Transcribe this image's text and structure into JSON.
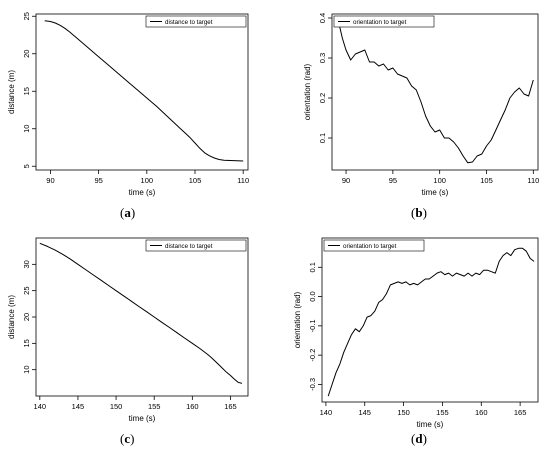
{
  "chart_data": [
    {
      "caption": "(a)",
      "caption_letter": "a",
      "type": "line",
      "xlabel": "time (s)",
      "ylabel": "distance (m)",
      "xlim": [
        88.5,
        110.5
      ],
      "ylim": [
        4.5,
        25.3
      ],
      "xticks": [
        90,
        95,
        100,
        105,
        110
      ],
      "yticks": [
        5,
        10,
        15,
        20,
        25
      ],
      "legend": "top-right",
      "series": [
        {
          "name": "distance to target",
          "x": [
            89.4,
            90,
            90.5,
            91,
            91.5,
            92,
            93,
            94,
            95,
            96,
            97,
            98,
            99,
            100,
            101,
            102,
            103,
            104,
            104.5,
            105,
            105.5,
            106,
            106.5,
            107,
            107.5,
            108,
            109,
            110
          ],
          "y": [
            24.4,
            24.3,
            24.1,
            23.8,
            23.4,
            22.9,
            21.8,
            20.7,
            19.6,
            18.5,
            17.4,
            16.3,
            15.2,
            14.1,
            13.0,
            11.8,
            10.6,
            9.4,
            8.8,
            8.1,
            7.4,
            6.8,
            6.4,
            6.1,
            5.9,
            5.8,
            5.75,
            5.7
          ]
        }
      ]
    },
    {
      "caption": "(b)",
      "caption_letter": "b",
      "type": "line",
      "xlabel": "time (s)",
      "ylabel": "orientation (rad)",
      "xlim": [
        88.5,
        110.5
      ],
      "ylim": [
        0.02,
        0.41
      ],
      "xticks": [
        90,
        95,
        100,
        105,
        110
      ],
      "yticks": [
        0.1,
        0.2,
        0.3,
        0.4
      ],
      "legend": "top-left",
      "series": [
        {
          "name": "orientation to target",
          "x": [
            89.2,
            89.6,
            90,
            90.5,
            91,
            91.5,
            92,
            92.5,
            93,
            93.5,
            94,
            94.5,
            95,
            95.5,
            96,
            96.5,
            97,
            97.5,
            98,
            98.5,
            99,
            99.5,
            100,
            100.5,
            101,
            101.5,
            102,
            102.5,
            103,
            103.5,
            104,
            104.5,
            105,
            105.5,
            106,
            106.5,
            107,
            107.5,
            108,
            108.5,
            109,
            109.5,
            110
          ],
          "y": [
            0.39,
            0.35,
            0.32,
            0.295,
            0.31,
            0.315,
            0.32,
            0.29,
            0.29,
            0.28,
            0.285,
            0.27,
            0.275,
            0.26,
            0.255,
            0.25,
            0.23,
            0.22,
            0.19,
            0.155,
            0.13,
            0.115,
            0.12,
            0.1,
            0.1,
            0.09,
            0.075,
            0.055,
            0.038,
            0.04,
            0.055,
            0.06,
            0.08,
            0.095,
            0.12,
            0.145,
            0.17,
            0.2,
            0.215,
            0.225,
            0.21,
            0.205,
            0.245
          ]
        }
      ]
    },
    {
      "caption": "(c)",
      "caption_letter": "c",
      "type": "line",
      "xlabel": "time (s)",
      "ylabel": "distance (m)",
      "xlim": [
        139.5,
        167.3
      ],
      "ylim": [
        5.0,
        35.0
      ],
      "xticks": [
        140,
        145,
        150,
        155,
        160,
        165
      ],
      "yticks": [
        10,
        15,
        20,
        25,
        30
      ],
      "legend": "top-right",
      "series": [
        {
          "name": "distance to target",
          "x": [
            140,
            141,
            142,
            143,
            144,
            145,
            146,
            147,
            148,
            149,
            150,
            151,
            152,
            153,
            154,
            155,
            156,
            157,
            158,
            159,
            160,
            161,
            162,
            162.5,
            163,
            163.5,
            164,
            164.5,
            165,
            165.5,
            166,
            166.5
          ],
          "y": [
            34.0,
            33.4,
            32.7,
            31.9,
            31.0,
            30.0,
            29.0,
            28.0,
            27.0,
            26.0,
            25.0,
            24.0,
            23.0,
            22.0,
            21.0,
            20.0,
            19.0,
            18.0,
            17.0,
            16.0,
            15.0,
            14.0,
            12.9,
            12.3,
            11.6,
            10.9,
            10.2,
            9.5,
            8.9,
            8.2,
            7.6,
            7.4
          ]
        }
      ]
    },
    {
      "caption": "(d)",
      "caption_letter": "d",
      "type": "line",
      "xlabel": "time (s)",
      "ylabel": "orientation (rad)",
      "xlim": [
        139.5,
        167.3
      ],
      "ylim": [
        -0.36,
        0.2
      ],
      "xticks": [
        140,
        145,
        150,
        155,
        160,
        165
      ],
      "yticks": [
        -0.3,
        -0.2,
        -0.1,
        0.0,
        0.1
      ],
      "legend": "top-left",
      "series": [
        {
          "name": "orientation to target",
          "x": [
            140.3,
            140.8,
            141.3,
            141.8,
            142.3,
            142.8,
            143.3,
            143.8,
            144.3,
            144.8,
            145.3,
            145.8,
            146.3,
            146.8,
            147.3,
            147.8,
            148.3,
            148.8,
            149.3,
            149.8,
            150.3,
            150.8,
            151.3,
            151.8,
            152.3,
            152.8,
            153.3,
            153.8,
            154.3,
            154.8,
            155.3,
            155.8,
            156.3,
            156.8,
            157.3,
            157.8,
            158.3,
            158.8,
            159.3,
            159.8,
            160.3,
            160.8,
            161.3,
            161.8,
            162.3,
            162.8,
            163.3,
            163.8,
            164.3,
            164.8,
            165.3,
            165.8,
            166.3,
            166.8
          ],
          "y": [
            -0.34,
            -0.3,
            -0.26,
            -0.23,
            -0.19,
            -0.16,
            -0.13,
            -0.11,
            -0.12,
            -0.1,
            -0.07,
            -0.065,
            -0.05,
            -0.02,
            -0.01,
            0.01,
            0.04,
            0.045,
            0.05,
            0.045,
            0.05,
            0.04,
            0.045,
            0.04,
            0.05,
            0.06,
            0.06,
            0.07,
            0.08,
            0.085,
            0.075,
            0.08,
            0.07,
            0.08,
            0.075,
            0.07,
            0.08,
            0.07,
            0.08,
            0.075,
            0.09,
            0.09,
            0.085,
            0.08,
            0.12,
            0.14,
            0.15,
            0.14,
            0.16,
            0.165,
            0.165,
            0.155,
            0.13,
            0.12
          ]
        }
      ]
    }
  ]
}
